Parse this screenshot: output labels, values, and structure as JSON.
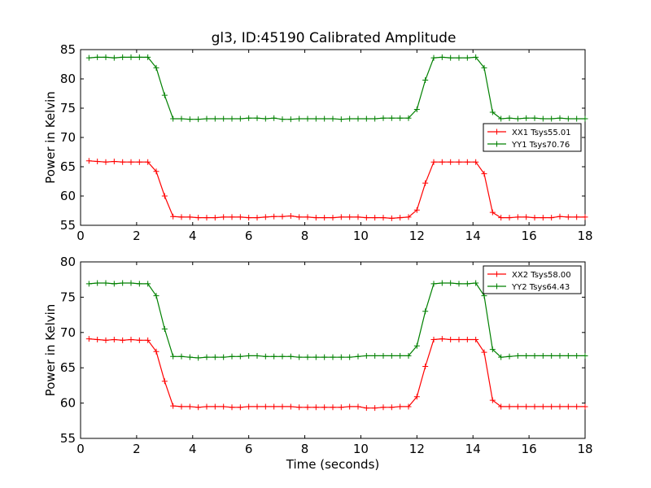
{
  "title": "gl3, ID:45190 Calibrated Amplitude",
  "colors": {
    "xx": "#ff0000",
    "yy": "#008000"
  },
  "chart_data": [
    {
      "type": "line",
      "xlabel": "",
      "ylabel": "Power in Kelvin",
      "xlim": [
        0,
        18
      ],
      "ylim": [
        55,
        85
      ],
      "xticks": [
        "0",
        "2",
        "4",
        "6",
        "8",
        "10",
        "12",
        "14",
        "16",
        "18"
      ],
      "yticks": [
        "55",
        "60",
        "65",
        "70",
        "75",
        "80",
        "85"
      ],
      "legend_position": "center-right",
      "x": [
        0.3,
        0.6,
        0.9,
        1.2,
        1.5,
        1.8,
        2.1,
        2.4,
        2.7,
        3.0,
        3.3,
        3.6,
        3.9,
        4.2,
        4.5,
        4.8,
        5.1,
        5.4,
        5.7,
        6.0,
        6.3,
        6.6,
        6.9,
        7.2,
        7.5,
        7.8,
        8.1,
        8.4,
        8.7,
        9.0,
        9.3,
        9.6,
        9.9,
        10.2,
        10.5,
        10.8,
        11.1,
        11.4,
        11.7,
        12.0,
        12.3,
        12.6,
        12.9,
        13.2,
        13.5,
        13.8,
        14.1,
        14.4,
        14.7,
        15.0,
        15.3,
        15.6,
        15.9,
        16.2,
        16.5,
        16.8,
        17.1,
        17.4,
        17.7,
        18.0
      ],
      "series": [
        {
          "name": "XX1 Tsys55.01",
          "color": "#ff0000",
          "values": [
            66.0,
            65.9,
            65.8,
            65.9,
            65.8,
            65.8,
            65.8,
            65.8,
            64.2,
            60.0,
            56.5,
            56.4,
            56.4,
            56.3,
            56.3,
            56.3,
            56.4,
            56.4,
            56.4,
            56.3,
            56.3,
            56.4,
            56.5,
            56.5,
            56.6,
            56.4,
            56.4,
            56.3,
            56.3,
            56.3,
            56.4,
            56.4,
            56.4,
            56.3,
            56.3,
            56.3,
            56.2,
            56.3,
            56.4,
            57.6,
            62.2,
            65.8,
            65.8,
            65.8,
            65.8,
            65.8,
            65.8,
            63.8,
            57.2,
            56.3,
            56.3,
            56.4,
            56.4,
            56.3,
            56.3,
            56.3,
            56.5,
            56.4,
            56.4,
            56.4
          ]
        },
        {
          "name": "YY1 Tsys70.76",
          "color": "#008000",
          "values": [
            83.6,
            83.7,
            83.7,
            83.6,
            83.7,
            83.7,
            83.7,
            83.7,
            81.9,
            77.2,
            73.2,
            73.2,
            73.1,
            73.1,
            73.2,
            73.2,
            73.2,
            73.2,
            73.2,
            73.3,
            73.3,
            73.2,
            73.3,
            73.1,
            73.1,
            73.2,
            73.2,
            73.2,
            73.2,
            73.2,
            73.1,
            73.2,
            73.2,
            73.2,
            73.2,
            73.3,
            73.3,
            73.3,
            73.3,
            74.8,
            79.8,
            83.6,
            83.7,
            83.6,
            83.6,
            83.6,
            83.7,
            81.9,
            74.3,
            73.2,
            73.3,
            73.2,
            73.3,
            73.3,
            73.2,
            73.2,
            73.3,
            73.2,
            73.2,
            73.2
          ]
        }
      ]
    },
    {
      "type": "line",
      "xlabel": "Time (seconds)",
      "ylabel": "Power in Kelvin",
      "xlim": [
        0,
        18
      ],
      "ylim": [
        55,
        80
      ],
      "xticks": [
        "0",
        "2",
        "4",
        "6",
        "8",
        "10",
        "12",
        "14",
        "16",
        "18"
      ],
      "yticks": [
        "55",
        "60",
        "65",
        "70",
        "75",
        "80"
      ],
      "legend_position": "top-right",
      "x": [
        0.3,
        0.6,
        0.9,
        1.2,
        1.5,
        1.8,
        2.1,
        2.4,
        2.7,
        3.0,
        3.3,
        3.6,
        3.9,
        4.2,
        4.5,
        4.8,
        5.1,
        5.4,
        5.7,
        6.0,
        6.3,
        6.6,
        6.9,
        7.2,
        7.5,
        7.8,
        8.1,
        8.4,
        8.7,
        9.0,
        9.3,
        9.6,
        9.9,
        10.2,
        10.5,
        10.8,
        11.1,
        11.4,
        11.7,
        12.0,
        12.3,
        12.6,
        12.9,
        13.2,
        13.5,
        13.8,
        14.1,
        14.4,
        14.7,
        15.0,
        15.3,
        15.6,
        15.9,
        16.2,
        16.5,
        16.8,
        17.1,
        17.4,
        17.7,
        18.0
      ],
      "series": [
        {
          "name": "XX2 Tsys58.00",
          "color": "#ff0000",
          "values": [
            69.1,
            69.0,
            68.9,
            69.0,
            68.9,
            69.0,
            68.9,
            68.9,
            67.3,
            63.1,
            59.6,
            59.5,
            59.5,
            59.4,
            59.5,
            59.5,
            59.5,
            59.4,
            59.4,
            59.5,
            59.5,
            59.5,
            59.5,
            59.5,
            59.5,
            59.4,
            59.4,
            59.4,
            59.4,
            59.4,
            59.4,
            59.5,
            59.5,
            59.3,
            59.3,
            59.4,
            59.4,
            59.5,
            59.5,
            60.9,
            65.2,
            69.0,
            69.1,
            69.0,
            69.0,
            69.0,
            69.0,
            67.2,
            60.4,
            59.5,
            59.5,
            59.5,
            59.5,
            59.5,
            59.5,
            59.5,
            59.5,
            59.5,
            59.5,
            59.5
          ]
        },
        {
          "name": "YY2 Tsys64.43",
          "color": "#008000",
          "values": [
            76.9,
            77.0,
            77.0,
            76.9,
            77.0,
            77.0,
            76.9,
            76.9,
            75.2,
            70.5,
            66.6,
            66.6,
            66.5,
            66.4,
            66.5,
            66.5,
            66.5,
            66.6,
            66.6,
            66.7,
            66.7,
            66.6,
            66.6,
            66.6,
            66.6,
            66.5,
            66.5,
            66.5,
            66.5,
            66.5,
            66.5,
            66.5,
            66.6,
            66.7,
            66.7,
            66.7,
            66.7,
            66.7,
            66.7,
            68.1,
            73.0,
            76.9,
            77.0,
            77.0,
            76.9,
            76.9,
            77.0,
            75.2,
            67.6,
            66.5,
            66.6,
            66.7,
            66.7,
            66.7,
            66.7,
            66.7,
            66.7,
            66.7,
            66.7,
            66.7
          ]
        }
      ]
    }
  ]
}
